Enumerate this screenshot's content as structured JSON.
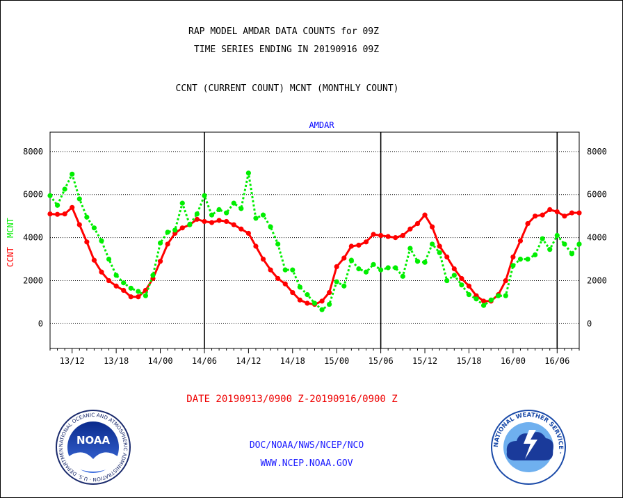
{
  "header": {
    "title_line1": "RAP MODEL AMDAR DATA COUNTS for 09Z",
    "title_line2": "TIME SERIES ENDING IN 20190916 09Z",
    "subtitle": "CCNT (CURRENT COUNT) MCNT (MONTHLY COUNT)"
  },
  "footer": {
    "date_range": "DATE 20190913/0900 Z-20190916/0900 Z",
    "org_line": "DOC/NOAA/NWS/NCEP/NCO",
    "website": "WWW.NCEP.NOAA.GOV"
  },
  "logos": {
    "noaa_text": "NOAA",
    "noaa_ring": "NATIONAL OCEANIC AND ATMOSPHERIC ADMINISTRATION · U.S. DEPARTMENT OF COMMERCE ·",
    "nws_ring": "NATIONAL WEATHER SERVICE ·"
  },
  "colors": {
    "ccnt": "#ff0000",
    "mcnt": "#00ee00",
    "plot_title": "#0000ff",
    "footer_blue": "#1a1aff"
  },
  "chart_data": {
    "type": "line",
    "title": "AMDAR",
    "ylabel_ccnt": "CCNT",
    "ylabel_mcnt": "MCNT",
    "x_unit": "hours from 20190913/0900 Z",
    "xlim": [
      0,
      72
    ],
    "ylim": [
      -1150,
      8900
    ],
    "yticks": [
      0,
      2000,
      4000,
      6000,
      8000
    ],
    "xtick_labels": [
      {
        "x": 3,
        "label": "13/12"
      },
      {
        "x": 9,
        "label": "13/18"
      },
      {
        "x": 15,
        "label": "14/00"
      },
      {
        "x": 21,
        "label": "14/06"
      },
      {
        "x": 27,
        "label": "14/12"
      },
      {
        "x": 33,
        "label": "14/18"
      },
      {
        "x": 39,
        "label": "15/00"
      },
      {
        "x": 45,
        "label": "15/06"
      },
      {
        "x": 51,
        "label": "15/12"
      },
      {
        "x": 57,
        "label": "15/18"
      },
      {
        "x": 63,
        "label": "16/00"
      },
      {
        "x": 69,
        "label": "16/06"
      }
    ],
    "day_lines": [
      21,
      45,
      69
    ],
    "grid": "horizontal dotted",
    "series": [
      {
        "name": "CCNT",
        "style": "solid",
        "values": [
          5100,
          5080,
          5100,
          5400,
          4600,
          3800,
          2950,
          2400,
          2000,
          1750,
          1550,
          1250,
          1250,
          1550,
          2100,
          2900,
          3700,
          4200,
          4450,
          4600,
          4850,
          4750,
          4700,
          4800,
          4750,
          4600,
          4400,
          4200,
          3600,
          3000,
          2500,
          2100,
          1850,
          1450,
          1100,
          950,
          900,
          1050,
          1450,
          2650,
          3050,
          3600,
          3650,
          3800,
          4150,
          4100,
          4050,
          4000,
          4100,
          4400,
          4650,
          5050,
          4500,
          3600,
          3100,
          2550,
          2100,
          1750,
          1300,
          1050,
          1050,
          1350,
          2000,
          3100,
          3850,
          4650,
          5000,
          5050,
          5300,
          5200,
          5000,
          5150,
          5150
        ]
      },
      {
        "name": "MCNT",
        "style": "dotted",
        "values": [
          5950,
          5500,
          6250,
          6950,
          5800,
          4950,
          4450,
          3850,
          3000,
          2250,
          1900,
          1650,
          1500,
          1300,
          2250,
          3750,
          4250,
          4350,
          5600,
          4600,
          5100,
          5950,
          5050,
          5300,
          5150,
          5600,
          5350,
          7000,
          4900,
          5050,
          4500,
          3700,
          2500,
          2500,
          1700,
          1350,
          950,
          650,
          900,
          1950,
          1750,
          2950,
          2550,
          2400,
          2750,
          2500,
          2600,
          2600,
          2200,
          3500,
          2900,
          2850,
          3700,
          3300,
          2000,
          2250,
          1800,
          1350,
          1150,
          850,
          1100,
          1300,
          1300,
          2700,
          3000,
          3000,
          3200,
          3950,
          3450,
          4100,
          3700,
          3250,
          3700
        ]
      }
    ]
  }
}
